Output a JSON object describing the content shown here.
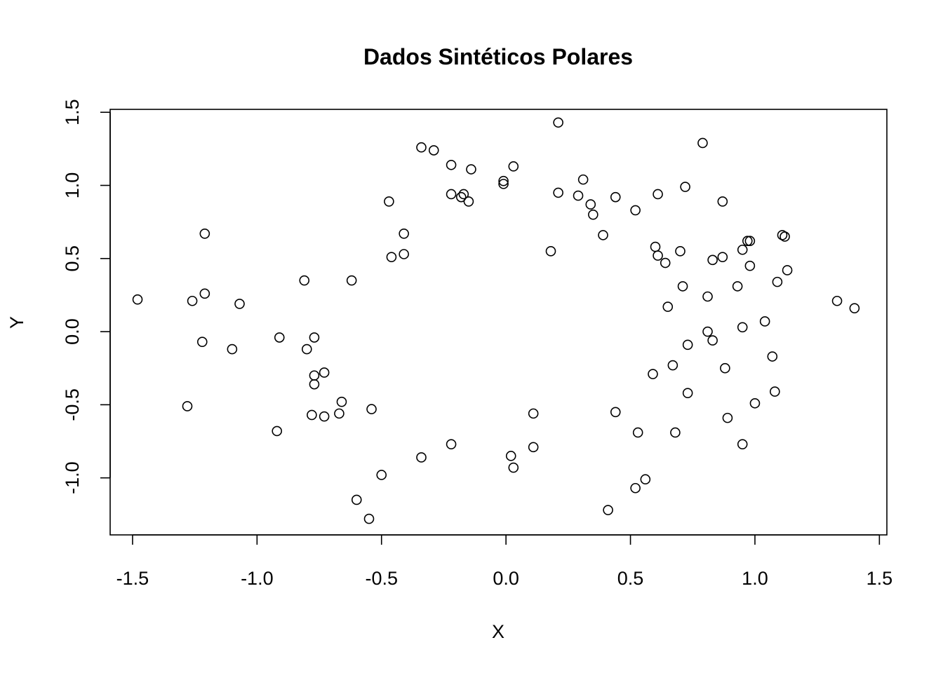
{
  "chart_data": {
    "type": "scatter",
    "title": "Dados Sintéticos Polares",
    "xlabel": "X",
    "ylabel": "Y",
    "xlim": [
      -1.59,
      1.53
    ],
    "ylim": [
      -1.39,
      1.52
    ],
    "x_ticks": [
      -1.5,
      -1.0,
      -0.5,
      0.0,
      0.5,
      1.0,
      1.5
    ],
    "x_tick_labels": [
      "-1.5",
      "-1.0",
      "-0.5",
      "0.0",
      "0.5",
      "1.0",
      "1.5"
    ],
    "y_ticks": [
      -1.0,
      -0.5,
      0.0,
      0.5,
      1.0,
      1.5
    ],
    "y_tick_labels": [
      "-1.0",
      "-0.5",
      "0.0",
      "0.5",
      "1.0",
      "1.5"
    ],
    "grid": false,
    "marker": "open-circle",
    "marker_color": "#000000",
    "points": [
      [
        -1.48,
        0.22
      ],
      [
        -1.28,
        -0.51
      ],
      [
        -1.26,
        0.21
      ],
      [
        -1.21,
        0.67
      ],
      [
        -1.21,
        0.26
      ],
      [
        -1.22,
        -0.07
      ],
      [
        -1.1,
        -0.12
      ],
      [
        -1.07,
        0.19
      ],
      [
        -0.92,
        -0.68
      ],
      [
        -0.91,
        -0.04
      ],
      [
        -0.81,
        0.35
      ],
      [
        -0.8,
        -0.12
      ],
      [
        -0.78,
        -0.57
      ],
      [
        -0.77,
        -0.04
      ],
      [
        -0.77,
        -0.3
      ],
      [
        -0.77,
        -0.36
      ],
      [
        -0.73,
        -0.58
      ],
      [
        -0.73,
        -0.28
      ],
      [
        -0.67,
        -0.56
      ],
      [
        -0.66,
        -0.48
      ],
      [
        -0.62,
        0.35
      ],
      [
        -0.6,
        -1.15
      ],
      [
        -0.55,
        -1.28
      ],
      [
        -0.54,
        -0.53
      ],
      [
        -0.5,
        -0.98
      ],
      [
        -0.47,
        0.89
      ],
      [
        -0.46,
        0.51
      ],
      [
        -0.41,
        0.67
      ],
      [
        -0.41,
        0.53
      ],
      [
        -0.34,
        -0.86
      ],
      [
        -0.34,
        1.26
      ],
      [
        -0.29,
        1.24
      ],
      [
        -0.22,
        1.14
      ],
      [
        -0.22,
        0.94
      ],
      [
        -0.22,
        -0.77
      ],
      [
        -0.18,
        0.92
      ],
      [
        -0.17,
        0.94
      ],
      [
        -0.15,
        0.89
      ],
      [
        -0.14,
        1.11
      ],
      [
        -0.01,
        1.03
      ],
      [
        -0.01,
        1.01
      ],
      [
        0.02,
        -0.85
      ],
      [
        0.03,
        1.13
      ],
      [
        0.03,
        -0.93
      ],
      [
        0.11,
        -0.56
      ],
      [
        0.11,
        -0.79
      ],
      [
        0.18,
        0.55
      ],
      [
        0.21,
        1.43
      ],
      [
        0.21,
        0.95
      ],
      [
        0.29,
        0.93
      ],
      [
        0.31,
        1.04
      ],
      [
        0.34,
        0.87
      ],
      [
        0.35,
        0.8
      ],
      [
        0.39,
        0.66
      ],
      [
        0.41,
        -1.22
      ],
      [
        0.44,
        0.92
      ],
      [
        0.44,
        -0.55
      ],
      [
        0.52,
        -1.07
      ],
      [
        0.52,
        0.83
      ],
      [
        0.53,
        -0.69
      ],
      [
        0.56,
        -1.01
      ],
      [
        0.59,
        -0.29
      ],
      [
        0.6,
        0.58
      ],
      [
        0.61,
        0.52
      ],
      [
        0.61,
        0.94
      ],
      [
        0.64,
        0.47
      ],
      [
        0.65,
        0.17
      ],
      [
        0.67,
        -0.23
      ],
      [
        0.68,
        -0.69
      ],
      [
        0.7,
        0.55
      ],
      [
        0.71,
        0.31
      ],
      [
        0.72,
        0.99
      ],
      [
        0.73,
        -0.42
      ],
      [
        0.73,
        -0.09
      ],
      [
        0.79,
        1.29
      ],
      [
        0.81,
        0.0
      ],
      [
        0.81,
        0.24
      ],
      [
        0.83,
        0.49
      ],
      [
        0.83,
        -0.06
      ],
      [
        0.87,
        0.51
      ],
      [
        0.87,
        0.89
      ],
      [
        0.88,
        -0.25
      ],
      [
        0.89,
        -0.59
      ],
      [
        0.93,
        0.31
      ],
      [
        0.95,
        0.56
      ],
      [
        0.95,
        0.03
      ],
      [
        0.95,
        -0.77
      ],
      [
        0.97,
        0.62
      ],
      [
        0.98,
        0.62
      ],
      [
        0.98,
        0.45
      ],
      [
        1.0,
        -0.49
      ],
      [
        1.04,
        0.07
      ],
      [
        1.07,
        -0.17
      ],
      [
        1.08,
        -0.41
      ],
      [
        1.09,
        0.34
      ],
      [
        1.11,
        0.66
      ],
      [
        1.12,
        0.65
      ],
      [
        1.13,
        0.42
      ],
      [
        1.33,
        0.21
      ],
      [
        1.4,
        0.16
      ]
    ]
  }
}
